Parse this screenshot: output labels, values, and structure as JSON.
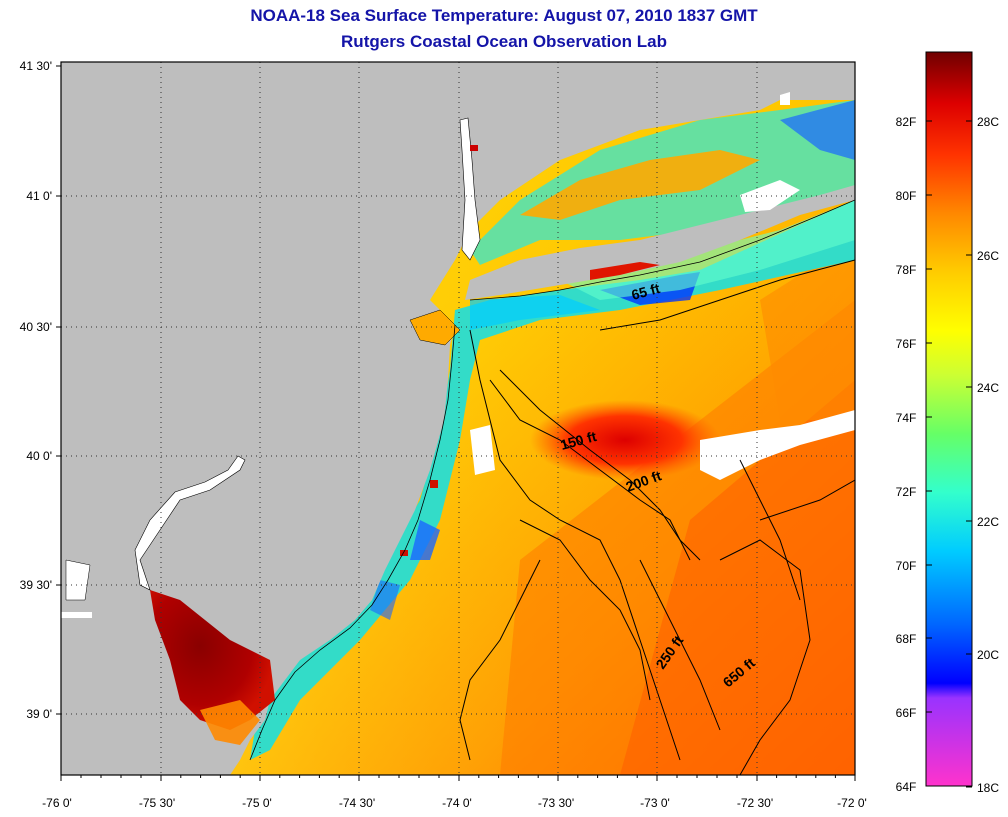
{
  "title": "NOAA-18 Sea Surface Temperature:  August 07, 2010 1837 GMT",
  "subtitle": "Rutgers Coastal Ocean Observation Lab",
  "map": {
    "lat_ticks": [
      "41 30'",
      "41 0'",
      "40 30'",
      "40 0'",
      "39 30'",
      "39 0'"
    ],
    "lon_ticks": [
      "-76 0'",
      "-75 30'",
      "-75 0'",
      "-74 30'",
      "-74 0'",
      "-73 30'",
      "-73 0'",
      "-72 30'",
      "-72 0'"
    ],
    "depth_labels": [
      "65 ft",
      "150 ft",
      "200 ft",
      "250 ft",
      "650 ft"
    ],
    "land_color": "#bebebe",
    "cloud_color": "#ffffff"
  },
  "colorbar": {
    "fahrenheit_labels": [
      "82F",
      "80F",
      "78F",
      "76F",
      "74F",
      "72F",
      "70F",
      "68F",
      "66F",
      "64F"
    ],
    "celsius_labels": [
      "28C",
      "26C",
      "24C",
      "22C",
      "20C",
      "18C"
    ],
    "stops": [
      "#ff33cc",
      "#9933ff",
      "#0000ff",
      "#0066ff",
      "#00ccff",
      "#33ffcc",
      "#66ff66",
      "#ccff33",
      "#ffff00",
      "#ffcc00",
      "#ff8800",
      "#ff3300",
      "#dd0000",
      "#700000"
    ]
  }
}
